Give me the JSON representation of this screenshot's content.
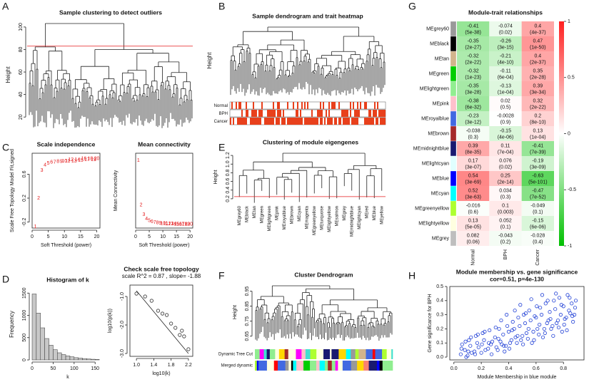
{
  "chart_data": [
    {
      "type": "dendrogram",
      "panel": "A",
      "title": "Sample clustering to detect outliers",
      "ylabel": "Height",
      "ylim": [
        10,
        105
      ],
      "yticks": [
        20,
        40,
        60,
        80,
        100
      ],
      "cut_height": 83,
      "cut_color": "#e41a1c"
    },
    {
      "type": "dendrogram",
      "panel": "B",
      "title": "Sample dendrogram and trait heatmap",
      "ylabel": "Height",
      "traits": [
        "Normal",
        "BPH",
        "Cancer"
      ],
      "trait_color": "#e8401c"
    },
    {
      "type": "scatter",
      "panel": "C",
      "title": "Scale independence",
      "xlabel": "Soft Threshold (power)",
      "ylabel": "Scale Free Topology Model Fit,signed",
      "marker": "label",
      "color": "#e41a1c",
      "x": [
        1,
        2,
        3,
        4,
        5,
        6,
        7,
        8,
        9,
        10,
        11,
        12,
        13,
        14,
        15,
        16,
        17,
        18,
        19,
        20
      ],
      "values": [
        -0.28,
        0.2,
        0.66,
        0.75,
        0.78,
        0.8,
        0.8,
        0.81,
        0.81,
        0.82,
        0.82,
        0.84,
        0.82,
        0.84,
        0.83,
        0.86,
        0.84,
        0.86,
        0.84,
        0.86
      ],
      "xlim": [
        0,
        21
      ],
      "ylim": [
        -0.3,
        0.95
      ],
      "xticks": [
        0,
        5,
        10,
        15,
        20
      ],
      "yticks": [
        -0.2,
        0.2,
        0.6
      ]
    },
    {
      "type": "scatter",
      "title": "Mean connectivity",
      "xlabel": "Soft Threshold (power)",
      "ylabel": "Mean Connectivity",
      "marker": "label",
      "color": "#e41a1c",
      "x": [
        1,
        2,
        3,
        4,
        5,
        6,
        7,
        8,
        9,
        10,
        11,
        12,
        13,
        14,
        15,
        16,
        17,
        18,
        19,
        20
      ],
      "values": [
        1800,
        550,
        280,
        160,
        110,
        80,
        60,
        45,
        35,
        28,
        22,
        18,
        15,
        12,
        10,
        9,
        8,
        7,
        6,
        5
      ],
      "xlim": [
        0,
        21
      ],
      "ylim": [
        -100,
        2000
      ],
      "xticks": [
        0,
        5,
        10,
        15,
        20
      ]
    },
    {
      "type": "histogram",
      "panel": "D",
      "title": "Histogram of k",
      "xlabel": "k",
      "ylabel": "Frequency",
      "color": "#c8c8c8",
      "bins": [
        0,
        10,
        20,
        30,
        40,
        50,
        60,
        70,
        80,
        90,
        100,
        110,
        120,
        130,
        140,
        150,
        160
      ],
      "values": [
        1480,
        1050,
        720,
        480,
        330,
        230,
        160,
        120,
        90,
        70,
        50,
        40,
        30,
        20,
        15,
        10
      ],
      "xlim": [
        0,
        170
      ],
      "ylim": [
        0,
        1600
      ],
      "xticks": [
        0,
        50,
        100,
        150
      ],
      "yticks": [
        0,
        500,
        1000,
        1500
      ]
    },
    {
      "type": "scatter",
      "title": "Check scale free topology",
      "subtitle": "scale R^2 = 0.87 , slope= -1.88",
      "xlabel": "log10(k)",
      "ylabel": "log10(p(k))",
      "marker": "circle",
      "color": "#333333",
      "x": [
        1.0,
        1.2,
        1.35,
        1.5,
        1.6,
        1.7,
        1.8,
        1.9,
        2.0,
        2.05,
        2.1,
        2.2
      ],
      "values": [
        -0.9,
        -1.0,
        -1.15,
        -1.5,
        -1.6,
        -1.65,
        -1.95,
        -2.1,
        -2.35,
        -2.2,
        -2.4,
        -2.85
      ],
      "fit_line": {
        "x": [
          1.0,
          2.2
        ],
        "y": [
          -0.8,
          -3.0
        ]
      },
      "xlim": [
        0.85,
        2.3
      ],
      "ylim": [
        -3.1,
        -0.6
      ],
      "xticks": [
        {
          "value": 1,
          "label": "1.0"
        },
        1.4,
        1.8,
        2.2
      ],
      "yticks": [
        {
          "value": -1,
          "label": "-1.0"
        },
        {
          "value": -2,
          "label": "-2.0"
        },
        {
          "value": -3,
          "label": "-3.0"
        }
      ]
    },
    {
      "type": "dendrogram",
      "panel": "E",
      "title": "Clustering of module eigengenes",
      "ylabel": "Height",
      "ylim": [
        0.1,
        1.3
      ],
      "yticks": [
        0.2,
        0.4,
        0.6,
        0.8,
        {
          "value": 1,
          "label": "1.0"
        },
        1.2
      ],
      "cut_height": 0.25,
      "cut_color": "#e41a1c",
      "leaves": [
        "MEgrey60",
        "MEblack",
        "MEtan",
        "MEgreen",
        "MElightgreen",
        "MEpink",
        "MEroyalblue",
        "MEbrown",
        "MEcyan",
        "MEmagenta",
        "MEgreenyellow",
        "MEturquoise",
        "MElightyellow",
        "MEsalmon",
        "MEgrey",
        "MEmidnightblue",
        "MElightcyan",
        "MEred",
        "MEblue",
        "MEyellow"
      ]
    },
    {
      "type": "dendrogram",
      "panel": "F",
      "title": "Cluster Dendrogram",
      "ylabel": "Height",
      "ylim": [
        0.62,
        1.0
      ],
      "yticks": [
        0.65,
        0.75,
        0.85,
        0.95
      ],
      "color_rows": [
        "Dynamic Tree Cut",
        "Merged dynamic"
      ]
    },
    {
      "type": "heatmap",
      "panel": "G",
      "title": "Module-trait relationships",
      "columns": [
        "Normal",
        "BPH",
        "Cancer"
      ],
      "clim": [
        -1,
        1
      ],
      "colorbar_ticks": [
        -1,
        -0.5,
        0,
        0.5,
        1
      ],
      "colors": {
        "low": "#00c000",
        "mid": "#ffffff",
        "high": "#ff2020"
      },
      "rows": [
        {
          "name": "MEgrey60",
          "color": "#999999",
          "values": [
            -0.41,
            -0.074,
            0.4
          ],
          "pvalues": [
            "(5e-38)",
            "(0.02)",
            "(4e-37)"
          ]
        },
        {
          "name": "MEblack",
          "color": "#000000",
          "values": [
            -0.35,
            -0.26,
            0.47
          ],
          "pvalues": [
            "(2e-27)",
            "(3e-15)",
            "(1e-50)"
          ]
        },
        {
          "name": "MEtan",
          "color": "#d2b48c",
          "values": [
            -0.32,
            -0.21,
            0.4
          ],
          "pvalues": [
            "(2e-22)",
            "(4e-10)",
            "(2e-37)"
          ]
        },
        {
          "name": "MEgreen",
          "color": "#00cd00",
          "values": [
            -0.32,
            -0.11,
            0.35
          ],
          "pvalues": [
            "(1e-23)",
            "(6e-04)",
            "(2e-28)"
          ]
        },
        {
          "name": "MElightgreen",
          "color": "#90ee90",
          "values": [
            -0.35,
            -0.13,
            0.39
          ],
          "pvalues": [
            "(3e-28)",
            "(1e-04)",
            "(3e-34)"
          ]
        },
        {
          "name": "MEpink",
          "color": "#ffc0cb",
          "values": [
            -0.38,
            0.02,
            0.32
          ],
          "pvalues": [
            "(6e-32)",
            "(0.5)",
            "(2e-22)"
          ]
        },
        {
          "name": "MEroyalblue",
          "color": "#4169e1",
          "values": [
            -0.23,
            -0.0028,
            0.2
          ],
          "pvalues": [
            "(3e-12)",
            "(0.9)",
            "(8e-10)"
          ]
        },
        {
          "name": "MEbrown",
          "color": "#a52a2a",
          "values": [
            -0.038,
            -0.15,
            0.13
          ],
          "pvalues": [
            "(0.3)",
            "(4e-06)",
            "(1e-04)"
          ]
        },
        {
          "name": "MEmidnightblue",
          "color": "#191970",
          "values": [
            0.39,
            0.11,
            -0.41
          ],
          "pvalues": [
            "(8e-35)",
            "(7e-04)",
            "(7e-39)"
          ]
        },
        {
          "name": "MElightcyan",
          "color": "#e0ffff",
          "values": [
            0.17,
            0.076,
            -0.19
          ],
          "pvalues": [
            "(3e-07)",
            "(0.02)",
            "(3e-09)"
          ]
        },
        {
          "name": "MEblue",
          "color": "#0000ff",
          "values": [
            0.54,
            0.25,
            -0.63
          ],
          "pvalues": [
            "(3e-69)",
            "(2e-14)",
            "(5e-101)"
          ]
        },
        {
          "name": "MEcyan",
          "color": "#00ffff",
          "values": [
            0.52,
            0.034,
            -0.47
          ],
          "pvalues": [
            "(3e-63)",
            "(0.3)",
            "(7e-52)"
          ]
        },
        {
          "name": "MEgreenyellow",
          "color": "#adff2f",
          "values": [
            -0.016,
            0.1,
            -0.049
          ],
          "pvalues": [
            "(0.6)",
            "(0.003)",
            "(0.1)"
          ]
        },
        {
          "name": "MElightyellow",
          "color": "#ffffe0",
          "values": [
            0.13,
            0.052,
            -0.15
          ],
          "pvalues": [
            "(5e-05)",
            "(0.1)",
            "(6e-06)"
          ]
        },
        {
          "name": "MEgrey",
          "color": "#bebebe",
          "values": [
            0.082,
            -0.043,
            -0.028
          ],
          "pvalues": [
            "(0.06)",
            "(0.2)",
            "(0.4)"
          ]
        }
      ]
    },
    {
      "type": "scatter",
      "panel": "H",
      "title": "Module membership vs. gene significance",
      "subtitle": "cor=0.51, p=4e-130",
      "xlabel": "Module Membership in blue module",
      "ylabel": "Gene significance for BPH",
      "marker": "circle",
      "color": "#1f3fd6",
      "x": [
        0.05,
        0.08,
        0.1,
        0.12,
        0.15,
        0.17,
        0.2,
        0.22,
        0.25,
        0.27,
        0.3,
        0.32,
        0.34,
        0.36,
        0.38,
        0.4,
        0.42,
        0.44,
        0.46,
        0.48,
        0.5,
        0.52,
        0.54,
        0.56,
        0.58,
        0.6,
        0.62,
        0.64,
        0.66,
        0.68,
        0.7,
        0.72,
        0.74,
        0.76,
        0.78,
        0.8,
        0.82,
        0.84,
        0.86,
        0.88,
        0.06,
        0.09,
        0.11,
        0.13,
        0.16,
        0.18,
        0.21,
        0.23,
        0.26,
        0.28,
        0.31,
        0.33,
        0.35,
        0.37,
        0.39,
        0.41,
        0.43,
        0.45,
        0.47,
        0.49,
        0.51,
        0.53,
        0.55,
        0.57,
        0.59,
        0.61,
        0.63,
        0.65,
        0.67,
        0.69,
        0.71,
        0.73,
        0.75,
        0.77,
        0.79,
        0.81,
        0.83,
        0.85,
        0.87,
        0.89,
        0.055,
        0.085,
        0.105,
        0.125,
        0.155,
        0.175,
        0.205,
        0.225,
        0.255,
        0.275,
        0.305,
        0.325,
        0.345,
        0.365,
        0.385,
        0.405,
        0.425,
        0.445,
        0.465,
        0.485,
        0.505,
        0.525,
        0.545,
        0.565,
        0.585,
        0.605,
        0.625,
        0.645,
        0.665,
        0.685,
        0.705,
        0.725,
        0.745,
        0.765,
        0.785,
        0.805,
        0.825,
        0.845,
        0.865,
        0.885
      ],
      "values": [
        0.02,
        0.05,
        0.01,
        0.08,
        0.04,
        0.1,
        0.03,
        0.12,
        0.06,
        0.09,
        0.14,
        0.05,
        0.11,
        0.16,
        0.08,
        0.18,
        0.12,
        0.2,
        0.1,
        0.22,
        0.15,
        0.24,
        0.13,
        0.26,
        0.18,
        0.28,
        0.16,
        0.3,
        0.2,
        0.24,
        0.32,
        0.22,
        0.34,
        0.26,
        0.3,
        0.36,
        0.28,
        0.33,
        0.38,
        0.3,
        0.09,
        0.0,
        0.12,
        0.03,
        0.15,
        0.07,
        0.17,
        0.05,
        0.19,
        0.11,
        0.07,
        0.2,
        0.09,
        0.04,
        0.22,
        0.1,
        0.25,
        0.14,
        0.28,
        0.12,
        0.3,
        0.17,
        0.33,
        0.1,
        0.29,
        0.2,
        0.35,
        0.14,
        0.38,
        0.26,
        0.2,
        0.4,
        0.24,
        0.42,
        0.18,
        0.27,
        0.44,
        0.31,
        0.25,
        0.4,
        0.06,
        0.11,
        0.04,
        0.14,
        0.02,
        0.16,
        0.09,
        0.18,
        0.1,
        0.02,
        0.21,
        0.13,
        0.26,
        0.08,
        0.3,
        0.06,
        0.19,
        0.33,
        0.15,
        0.37,
        0.09,
        0.31,
        0.2,
        0.41,
        0.12,
        0.36,
        0.23,
        0.44,
        0.17,
        0.4,
        0.27,
        0.15,
        0.45,
        0.21,
        0.37,
        0.23,
        0.19,
        0.42,
        0.29,
        0.35
      ],
      "xlim": [
        -0.03,
        0.95
      ],
      "ylim": [
        -0.02,
        0.5
      ],
      "xticks": [
        {
          "value": 0,
          "label": "0.0"
        },
        0.2,
        0.4,
        0.6,
        0.8
      ],
      "yticks": [
        {
          "value": 0,
          "label": "0.0"
        },
        0.1,
        0.2,
        0.3,
        0.4,
        0.5
      ]
    }
  ]
}
